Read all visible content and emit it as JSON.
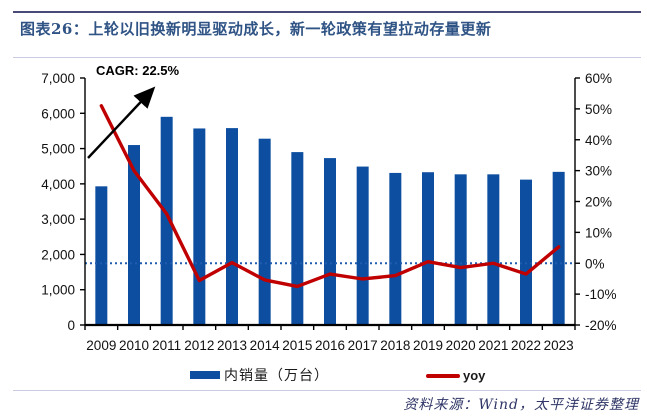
{
  "header": {
    "title": "图表26：上轮以旧换新明显驱动成长，新一轮政策有望拉动存量更新"
  },
  "annotation": {
    "cagr_label": "CAGR: 22.5%"
  },
  "chart_data": {
    "type": "bar",
    "title": "",
    "categories": [
      "2009",
      "2010",
      "2011",
      "2012",
      "2013",
      "2014",
      "2015",
      "2016",
      "2017",
      "2018",
      "2019",
      "2020",
      "2021",
      "2022",
      "2023"
    ],
    "series": [
      {
        "name": "内销量（万台）",
        "type": "bar",
        "axis": "left",
        "color": "#0D4EA0",
        "values": [
          3930,
          5100,
          5900,
          5570,
          5580,
          5280,
          4900,
          4730,
          4490,
          4310,
          4330,
          4270,
          4270,
          4120,
          4340
        ]
      },
      {
        "name": "yoy",
        "type": "line",
        "axis": "right",
        "color": "#C00000",
        "values": [
          51,
          30,
          16,
          -5.6,
          0.2,
          -5.4,
          -7.5,
          -3.5,
          -5.1,
          -4.0,
          0.5,
          -1.4,
          0.0,
          -3.5,
          5.3
        ]
      }
    ],
    "left_axis": {
      "min": 0,
      "max": 7000,
      "tick_values": [
        7000,
        6000,
        5000,
        4000,
        3000,
        2000,
        1000,
        0
      ],
      "tick_labels": [
        "7,000",
        "6,000",
        "5,000",
        "4,000",
        "3,000",
        "2,000",
        "1,000",
        "0"
      ]
    },
    "right_axis": {
      "min": -20,
      "max": 60,
      "tick_values": [
        60,
        50,
        40,
        30,
        20,
        10,
        0,
        -10,
        -20
      ],
      "tick_labels": [
        "60%",
        "50%",
        "40%",
        "30%",
        "20%",
        "10%",
        "0%",
        "-10%",
        "-20%"
      ]
    },
    "zero_line": {
      "axis": "right",
      "value": 0,
      "style": "dotted",
      "color": "#1F5CB0"
    },
    "grid": false,
    "legend_position": "bottom",
    "colors": {
      "axis": "#000000",
      "tick_text": "#111111",
      "arrow": "#000000"
    }
  },
  "legend": [
    {
      "label": "内销量（万台）",
      "swatch": "bar",
      "color": "#0D4EA0"
    },
    {
      "label": "yoy",
      "swatch": "line",
      "color": "#C00000"
    }
  ],
  "footer": {
    "source": "资料来源：Wind，太平洋证券整理"
  }
}
